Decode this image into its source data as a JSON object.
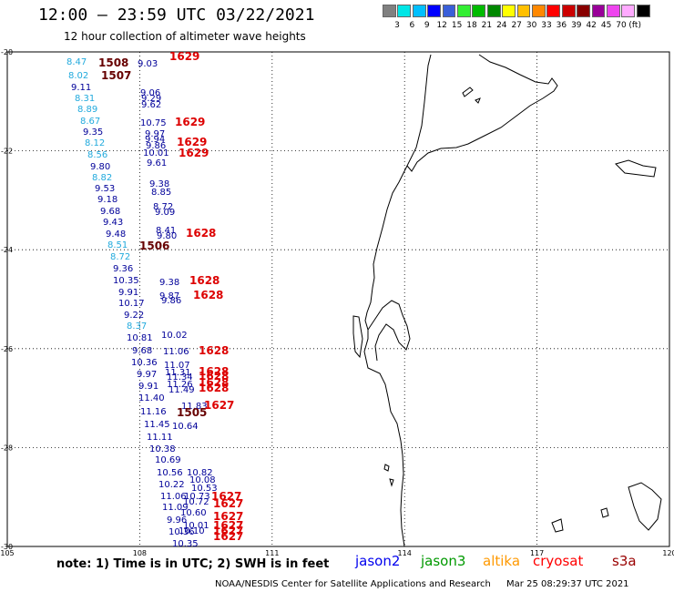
{
  "header": {
    "title": "12:00 – 23:59 UTC 03/22/2021",
    "subtitle": "12 hour collection of altimeter wave heights"
  },
  "scale": {
    "colors": [
      "#808080",
      "#00e6e6",
      "#00bfff",
      "#0000ff",
      "#3a5fd9",
      "#33ee33",
      "#00bb00",
      "#008800",
      "#ffff00",
      "#ffc000",
      "#ff8800",
      "#ff0000",
      "#cc0000",
      "#880000",
      "#990099",
      "#ee44ee",
      "#ffaaff",
      "#000000"
    ],
    "labels": [
      "3",
      "6",
      "9",
      "12",
      "15",
      "18",
      "21",
      "24",
      "27",
      "30",
      "33",
      "36",
      "39",
      "42",
      "45",
      "70"
    ],
    "unit": "(ft)"
  },
  "map": {
    "lat_labels": [
      "-20",
      "-22",
      "-24",
      "-26",
      "-28",
      "-30"
    ],
    "lon_labels": [
      "105",
      "108",
      "111",
      "114",
      "117",
      "120"
    ]
  },
  "observations": [
    {
      "v": "8.47",
      "c": "#22aadd"
    },
    {
      "v": "8.02",
      "c": "#22aadd"
    },
    {
      "v": "9.11",
      "c": "#000099"
    },
    {
      "v": "8.31",
      "c": "#22aadd"
    },
    {
      "v": "8.89",
      "c": "#22aadd"
    },
    {
      "v": "8.67",
      "c": "#22aadd"
    },
    {
      "v": "9.35",
      "c": "#000099"
    },
    {
      "v": "8.12",
      "c": "#22aadd"
    },
    {
      "v": "8.56",
      "c": "#22aadd"
    },
    {
      "v": "9.80",
      "c": "#000099"
    },
    {
      "v": "8.82",
      "c": "#22aadd"
    },
    {
      "v": "9.53",
      "c": "#000099"
    },
    {
      "v": "9.18",
      "c": "#000099"
    },
    {
      "v": "9.68",
      "c": "#000099"
    },
    {
      "v": "9.43",
      "c": "#000099"
    },
    {
      "v": "9.48",
      "c": "#000099"
    },
    {
      "v": "8.51",
      "c": "#22aadd"
    },
    {
      "v": "8.72",
      "c": "#22aadd"
    },
    {
      "v": "9.36",
      "c": "#000099"
    },
    {
      "v": "10.35",
      "c": "#000099"
    },
    {
      "v": "9.91",
      "c": "#000099"
    },
    {
      "v": "10.17",
      "c": "#000099"
    },
    {
      "v": "9.22",
      "c": "#000099"
    },
    {
      "v": "8.37",
      "c": "#22aadd"
    },
    {
      "v": "10.81",
      "c": "#000099"
    },
    {
      "v": "9.68",
      "c": "#000099"
    },
    {
      "v": "10.36",
      "c": "#000099"
    },
    {
      "v": "9.97",
      "c": "#000099"
    },
    {
      "v": "9.91",
      "c": "#000099"
    },
    {
      "v": "11.40",
      "c": "#000099"
    },
    {
      "v": "11.16",
      "c": "#000099"
    },
    {
      "v": "11.45",
      "c": "#000099"
    },
    {
      "v": "11.11",
      "c": "#000099"
    },
    {
      "v": "10.38",
      "c": "#000099"
    },
    {
      "v": "10.69",
      "c": "#000099"
    },
    {
      "v": "10.56",
      "c": "#000099"
    },
    {
      "v": "10.22",
      "c": "#000099"
    },
    {
      "v": "11.06",
      "c": "#000099"
    },
    {
      "v": "11.09",
      "c": "#000099"
    },
    {
      "v": "9.96",
      "c": "#000099"
    },
    {
      "v": "10.36",
      "c": "#000099"
    },
    {
      "v": "10.35",
      "c": "#000099"
    },
    {
      "v": "9.03",
      "c": "#000099"
    },
    {
      "v": "9.06",
      "c": "#000099"
    },
    {
      "v": "9.29",
      "c": "#000099"
    },
    {
      "v": "9.62",
      "c": "#000099"
    },
    {
      "v": "10.75",
      "c": "#000099"
    },
    {
      "v": "9.97",
      "c": "#000099"
    },
    {
      "v": "9.94",
      "c": "#000099"
    },
    {
      "v": "9.86",
      "c": "#000099"
    },
    {
      "v": "10.01",
      "c": "#000099"
    },
    {
      "v": "9.61",
      "c": "#000099"
    },
    {
      "v": "9.38",
      "c": "#000099"
    },
    {
      "v": "8.85",
      "c": "#000099"
    },
    {
      "v": "8.72",
      "c": "#000099"
    },
    {
      "v": "9.09",
      "c": "#000099"
    },
    {
      "v": "8.41",
      "c": "#000099"
    },
    {
      "v": "9.80",
      "c": "#000099"
    },
    {
      "v": "9.38",
      "c": "#000099"
    },
    {
      "v": "9.87",
      "c": "#000099"
    },
    {
      "v": "9.86",
      "c": "#000099"
    },
    {
      "v": "10.02",
      "c": "#000099"
    },
    {
      "v": "11.06",
      "c": "#000099"
    },
    {
      "v": "11.07",
      "c": "#000099"
    },
    {
      "v": "11.31",
      "c": "#000099"
    },
    {
      "v": "11.34",
      "c": "#000099"
    },
    {
      "v": "11.26",
      "c": "#000099"
    },
    {
      "v": "11.49",
      "c": "#000099"
    },
    {
      "v": "11.83",
      "c": "#000099"
    },
    {
      "v": "10.64",
      "c": "#000099"
    },
    {
      "v": "10.82",
      "c": "#000099"
    },
    {
      "v": "10.08",
      "c": "#000099"
    },
    {
      "v": "10.53",
      "c": "#000099"
    },
    {
      "v": "10.73",
      "c": "#000099"
    },
    {
      "v": "10.72",
      "c": "#000099"
    },
    {
      "v": "10.60",
      "c": "#000099"
    },
    {
      "v": "10.01",
      "c": "#000099"
    },
    {
      "v": "10.10",
      "c": "#000099"
    },
    {
      "v": "1508",
      "c": "#660000",
      "t": 1
    },
    {
      "v": "1507",
      "c": "#660000",
      "t": 1
    },
    {
      "v": "1506",
      "c": "#660000",
      "t": 1
    },
    {
      "v": "1505",
      "c": "#660000",
      "t": 1
    },
    {
      "v": "1629",
      "c": "#dd0000",
      "t": 1
    },
    {
      "v": "1629",
      "c": "#dd0000",
      "t": 1
    },
    {
      "v": "1629",
      "c": "#dd0000",
      "t": 1
    },
    {
      "v": "1629",
      "c": "#dd0000",
      "t": 1
    },
    {
      "v": "1628",
      "c": "#dd0000",
      "t": 1
    },
    {
      "v": "1628",
      "c": "#dd0000",
      "t": 1
    },
    {
      "v": "1628",
      "c": "#dd0000",
      "t": 1
    },
    {
      "v": "1628",
      "c": "#dd0000",
      "t": 1
    },
    {
      "v": "1628",
      "c": "#dd0000",
      "t": 1
    },
    {
      "v": "1628",
      "c": "#dd0000",
      "t": 1
    },
    {
      "v": "1628",
      "c": "#dd0000",
      "t": 1
    },
    {
      "v": "1628",
      "c": "#dd0000",
      "t": 1
    },
    {
      "v": "1627",
      "c": "#dd0000",
      "t": 1
    },
    {
      "v": "1627",
      "c": "#dd0000",
      "t": 1
    },
    {
      "v": "1627",
      "c": "#dd0000",
      "t": 1
    },
    {
      "v": "1627",
      "c": "#dd0000",
      "t": 1
    },
    {
      "v": "1627",
      "c": "#dd0000",
      "t": 1
    },
    {
      "v": "1627",
      "c": "#dd0000",
      "t": 1
    },
    {
      "v": "1627",
      "c": "#dd0000",
      "t": 1
    }
  ],
  "note": "note:  1) Time is in UTC;  2) SWH is in feet",
  "satellites": [
    {
      "name": "jason2",
      "color": "#0000ee"
    },
    {
      "name": "jason3",
      "color": "#009900"
    },
    {
      "name": "altika",
      "color": "#ff9900"
    },
    {
      "name": "cryosat",
      "color": "#ff0000"
    },
    {
      "name": "s3a",
      "color": "#990000"
    }
  ],
  "footer": {
    "source": "NOAA/NESDIS Center for Satellite Applications and Research",
    "timestamp": "Mar 25 08:29:37 UTC 2021"
  }
}
